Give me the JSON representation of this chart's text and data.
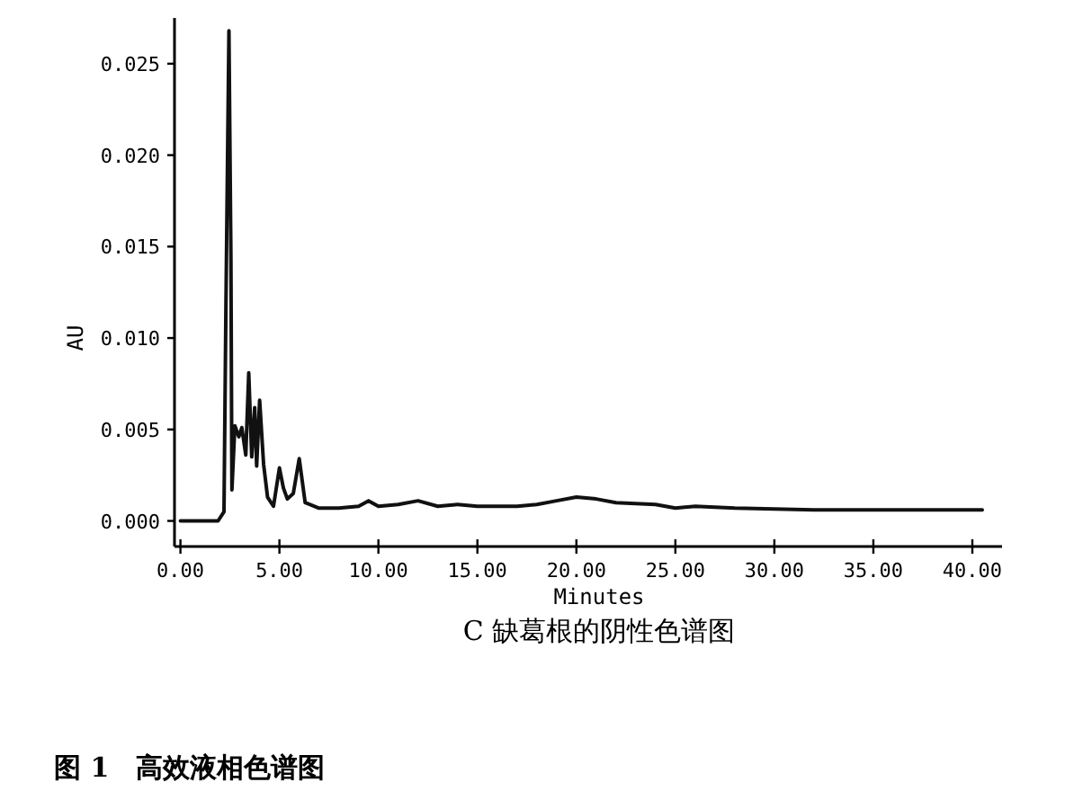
{
  "chart_data": {
    "type": "line",
    "xlabel": "Minutes",
    "ylabel": "AU",
    "color": "#111111",
    "annotations": [
      "C 缺葛根的阴性色谱图",
      "图 1　高效液相色谱图"
    ],
    "xlim": [
      -0.3,
      41.5
    ],
    "ylim": [
      -0.0014,
      0.0275
    ],
    "xticks": [
      {
        "value": 0,
        "label": "0.00"
      },
      {
        "value": 5,
        "label": "5.00"
      },
      {
        "value": 10,
        "label": "10.00"
      },
      {
        "value": 15,
        "label": "15.00"
      },
      {
        "value": 20,
        "label": "20.00"
      },
      {
        "value": 25,
        "label": "25.00"
      },
      {
        "value": 30,
        "label": "30.00"
      },
      {
        "value": 35,
        "label": "35.00"
      },
      {
        "value": 40,
        "label": "40.00"
      }
    ],
    "yticks": [
      {
        "value": 0,
        "label": "0.000"
      },
      {
        "value": 0.005,
        "label": "0.005"
      },
      {
        "value": 0.01,
        "label": "0.010"
      },
      {
        "value": 0.015,
        "label": "0.015"
      },
      {
        "value": 0.02,
        "label": "0.020"
      },
      {
        "value": 0.025,
        "label": "0.025"
      }
    ],
    "x": [
      0,
      1.9,
      2.2,
      2.3,
      2.45,
      2.55,
      2.6,
      2.75,
      2.95,
      3.1,
      3.3,
      3.45,
      3.6,
      3.75,
      3.85,
      4.0,
      4.2,
      4.4,
      4.7,
      5.0,
      5.2,
      5.4,
      5.7,
      6.0,
      6.3,
      7,
      8,
      9,
      9.5,
      10,
      11,
      12,
      13,
      14,
      15,
      17,
      18,
      19,
      20,
      21,
      22,
      24,
      25,
      26,
      28,
      32,
      35,
      40.5
    ],
    "values": [
      0,
      0,
      0.0005,
      0.012,
      0.0268,
      0.0144,
      0.0017,
      0.0052,
      0.0046,
      0.0051,
      0.0036,
      0.0081,
      0.0035,
      0.0062,
      0.003,
      0.0066,
      0.0031,
      0.0013,
      0.0008,
      0.0029,
      0.0018,
      0.0012,
      0.0015,
      0.0034,
      0.001,
      0.0007,
      0.0007,
      0.0008,
      0.0011,
      0.0008,
      0.0009,
      0.0011,
      0.0008,
      0.0009,
      0.0008,
      0.0008,
      0.0009,
      0.0011,
      0.0013,
      0.0012,
      0.001,
      0.0009,
      0.0007,
      0.0008,
      0.0007,
      0.0006,
      0.0006,
      0.0006
    ]
  }
}
